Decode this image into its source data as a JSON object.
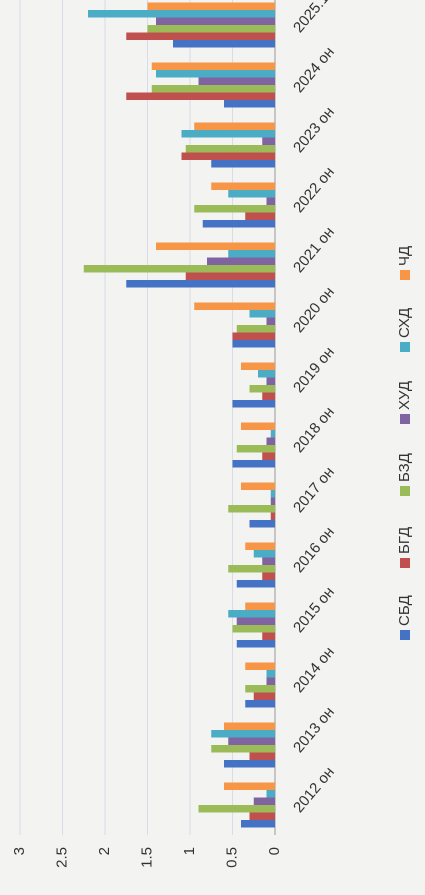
{
  "chart_data": {
    "type": "bar",
    "categories": [
      "2012 он",
      "2013 он",
      "2014 он",
      "2015 он",
      "2016 он",
      "2017 он",
      "2018 он",
      "2019 он",
      "2020 он",
      "2021 он",
      "2022 он",
      "2023 он",
      "2024 он",
      "2025.11"
    ],
    "series": [
      {
        "name": "СБД",
        "color": "#4472c4",
        "values": [
          0.4,
          0.6,
          0.35,
          0.45,
          0.45,
          0.3,
          0.5,
          0.5,
          0.5,
          1.75,
          0.85,
          0.75,
          0.6,
          1.2
        ]
      },
      {
        "name": "БГД",
        "color": "#c0504d",
        "values": [
          0.3,
          0.3,
          0.25,
          0.15,
          0.15,
          0.05,
          0.15,
          0.15,
          0.5,
          1.05,
          0.35,
          1.1,
          1.75,
          1.75
        ]
      },
      {
        "name": "БЗД",
        "color": "#9bbb59",
        "values": [
          0.9,
          0.75,
          0.35,
          0.5,
          0.55,
          0.55,
          0.45,
          0.3,
          0.45,
          2.25,
          0.95,
          1.05,
          1.45,
          1.5
        ]
      },
      {
        "name": "ХУД",
        "color": "#8064a2",
        "values": [
          0.25,
          0.55,
          0.1,
          0.45,
          0.15,
          0.05,
          0.1,
          0.1,
          0.1,
          0.8,
          0.1,
          0.15,
          0.9,
          1.4
        ]
      },
      {
        "name": "СХД",
        "color": "#4bacc6",
        "values": [
          0.1,
          0.75,
          0.1,
          0.55,
          0.25,
          0.05,
          0.05,
          0.2,
          0.3,
          0.55,
          0.55,
          1.1,
          1.4,
          2.2
        ]
      },
      {
        "name": "ЧД",
        "color": "#f79646",
        "values": [
          0.6,
          0.6,
          0.35,
          0.35,
          0.35,
          0.4,
          0.4,
          0.4,
          0.95,
          1.4,
          0.75,
          0.95,
          1.45,
          1.5
        ]
      }
    ],
    "ylim": [
      0,
      3
    ],
    "yticks": [
      0,
      0.5,
      1,
      1.5,
      2,
      2.5,
      3
    ],
    "grid": true,
    "legend": "bottom"
  }
}
